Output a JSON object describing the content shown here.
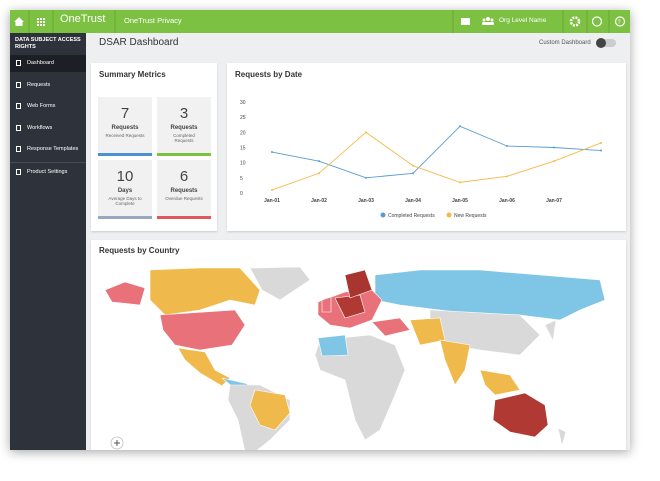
{
  "header": {
    "brand": "OneTrust",
    "product": "OneTrust Privacy",
    "org": "Org Level Name"
  },
  "sidebar": {
    "section": "DATA SUBJECT ACCESS RIGHTS",
    "items": [
      "Dashboard",
      "Requests",
      "Web Forms",
      "Workflows",
      "Response Templates"
    ],
    "settings": "Product Settings"
  },
  "page": {
    "title": "DSAR Dashboard",
    "toggle": "Custom Dashboard"
  },
  "summary": {
    "title": "Summary Metrics",
    "metrics": [
      {
        "value": 7,
        "label": "Requests",
        "sublabel": "Received Requests",
        "color": "#4b90d4"
      },
      {
        "value": 3,
        "label": "Requests",
        "sublabel": "Completed Requests",
        "color": "#7dc142"
      },
      {
        "value": 10,
        "label": "Days",
        "sublabel": "Average Days to Complete",
        "color": "#9aa7c0"
      },
      {
        "value": 6,
        "label": "Requests",
        "sublabel": "Overdue Requests",
        "color": "#e0575b"
      }
    ]
  },
  "line_chart": {
    "type": "line",
    "title": "Requests by Date",
    "categories": [
      "Jan-01",
      "Jan-02",
      "Jan-03",
      "Jan-04",
      "Jan-05",
      "Jan-06",
      "Jan-07",
      null
    ],
    "series": [
      {
        "name": "Completed Requests",
        "color": "#5b9bd5",
        "values": [
          13.5,
          10.5,
          5,
          6.5,
          22,
          15.5,
          15,
          14
        ]
      },
      {
        "name": "New Requests",
        "color": "#f5b94a",
        "values": [
          1,
          6.5,
          20,
          9,
          3.5,
          5.5,
          10.5,
          16.5
        ]
      }
    ],
    "ylim": [
      0,
      30
    ],
    "yticks": [
      0,
      5,
      10,
      15,
      20,
      25,
      30
    ]
  },
  "map": {
    "title": "Requests by Country"
  }
}
